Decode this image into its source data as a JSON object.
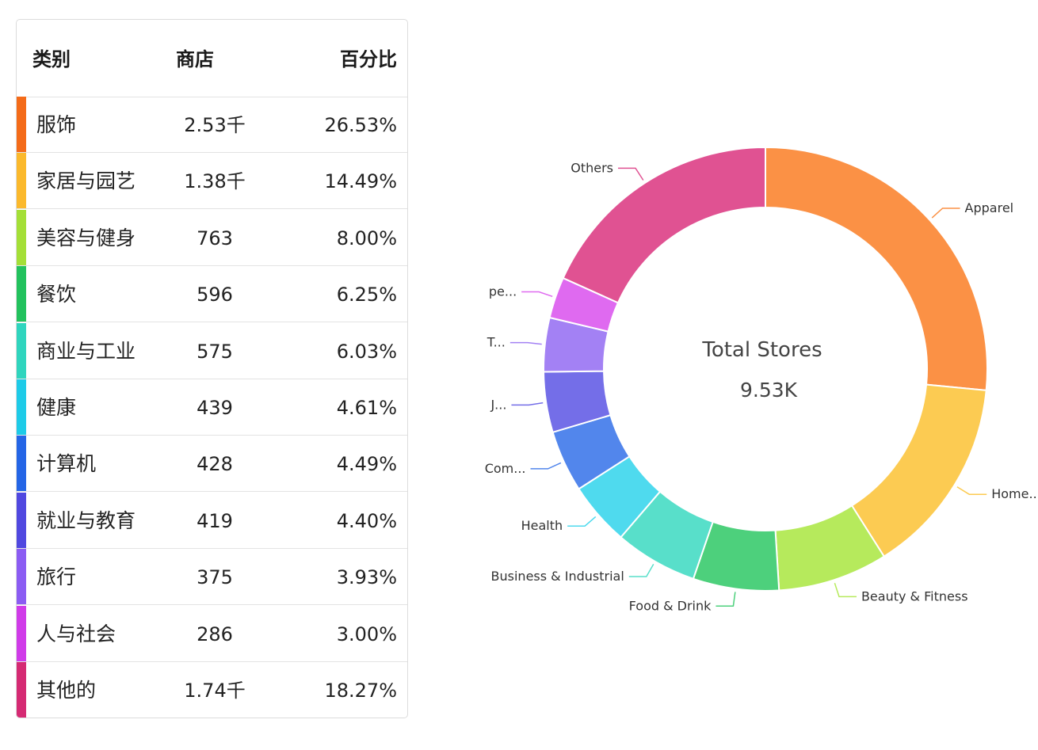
{
  "table": {
    "headers": {
      "category": "类别",
      "stores": "商店",
      "percent": "百分比"
    },
    "rows": [
      {
        "category": "服饰",
        "stores": "2.53千",
        "percent": "26.53%",
        "color": "#f46b19"
      },
      {
        "category": "家居与园艺",
        "stores": "1.38千",
        "percent": "14.49%",
        "color": "#fbb92c"
      },
      {
        "category": "美容与健身",
        "stores": "763",
        "percent": "8.00%",
        "color": "#a4df37"
      },
      {
        "category": "餐饮",
        "stores": "596",
        "percent": "6.25%",
        "color": "#22c25d"
      },
      {
        "category": "商业与工业",
        "stores": "575",
        "percent": "6.03%",
        "color": "#2fd5be"
      },
      {
        "category": "健康",
        "stores": "439",
        "percent": "4.61%",
        "color": "#1dcbe8"
      },
      {
        "category": "计算机",
        "stores": "428",
        "percent": "4.49%",
        "color": "#2465e6"
      },
      {
        "category": "就业与教育",
        "stores": "419",
        "percent": "4.40%",
        "color": "#5048e0"
      },
      {
        "category": "旅行",
        "stores": "375",
        "percent": "3.93%",
        "color": "#8b5cf3"
      },
      {
        "category": "人与社会",
        "stores": "286",
        "percent": "3.00%",
        "color": "#d03be9"
      },
      {
        "category": "其他的",
        "stores": "1.74千",
        "percent": "18.27%",
        "color": "#d52a73"
      }
    ]
  },
  "chart_data": {
    "type": "pie",
    "center_title": "Total Stores",
    "center_value": "9.53K",
    "slices": [
      {
        "label": "Apparel",
        "value": 26.53,
        "color": "#fb9145"
      },
      {
        "label": "Home...",
        "value": 14.49,
        "color": "#fccb52"
      },
      {
        "label": "Beauty & Fitness",
        "value": 8.0,
        "color": "#b6ea5c"
      },
      {
        "label": "Food & Drink",
        "value": 6.25,
        "color": "#4dd07c"
      },
      {
        "label": "Business & Industrial",
        "value": 6.03,
        "color": "#58dfca"
      },
      {
        "label": "Health",
        "value": 4.61,
        "color": "#4fdaee"
      },
      {
        "label": "Com...",
        "value": 4.49,
        "color": "#5286ec"
      },
      {
        "label": "J...",
        "value": 4.4,
        "color": "#746ee8"
      },
      {
        "label": "T...",
        "value": 3.93,
        "color": "#a381f4"
      },
      {
        "label": "pe...",
        "value": 3.0,
        "color": "#df6af0"
      },
      {
        "label": "Others",
        "value": 18.27,
        "color": "#e05292"
      }
    ]
  }
}
